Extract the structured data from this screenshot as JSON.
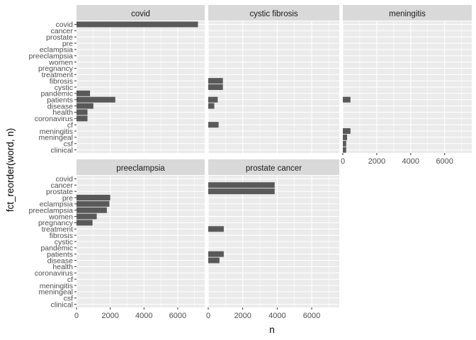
{
  "chart_data": {
    "type": "bar",
    "orientation": "horizontal",
    "facet_layout": "3-column wrap",
    "xlabel": "n",
    "ylabel": "fct_reorder(word, n)",
    "xlim": [
      0,
      7600
    ],
    "x_ticks": [
      0,
      2000,
      4000,
      6000
    ],
    "x_tick_labels": [
      "0",
      "2000",
      "4000",
      "6000"
    ],
    "grid": true,
    "colors": {
      "bar": "#595959",
      "panel": "#ebebeb",
      "strip": "#d9d9d9",
      "grid": "#ffffff"
    },
    "categories": [
      "covid",
      "cancer",
      "prostate",
      "pre",
      "eclampsia",
      "preeclampsia",
      "women",
      "pregnancy",
      "treatment",
      "fibrosis",
      "cystic",
      "pandemic",
      "patients",
      "disease",
      "health",
      "coronavirus",
      "cf",
      "meningitis",
      "meningeal",
      "csf",
      "clinical"
    ],
    "series": [
      {
        "name": "covid",
        "values": [
          7200,
          0,
          0,
          0,
          0,
          0,
          0,
          0,
          0,
          0,
          0,
          800,
          2300,
          1000,
          650,
          650,
          0,
          0,
          0,
          0,
          0
        ]
      },
      {
        "name": "cystic fibrosis",
        "values": [
          0,
          0,
          0,
          0,
          0,
          0,
          0,
          0,
          0,
          850,
          850,
          0,
          550,
          350,
          0,
          0,
          600,
          0,
          0,
          0,
          0
        ]
      },
      {
        "name": "meningitis",
        "values": [
          0,
          0,
          0,
          0,
          0,
          0,
          0,
          0,
          0,
          0,
          0,
          0,
          450,
          0,
          0,
          0,
          0,
          450,
          250,
          200,
          200
        ]
      },
      {
        "name": "preeclampsia",
        "values": [
          0,
          0,
          0,
          2000,
          1950,
          1800,
          1200,
          950,
          0,
          0,
          0,
          0,
          0,
          0,
          0,
          0,
          0,
          0,
          0,
          0,
          0
        ]
      },
      {
        "name": "prostate cancer",
        "values": [
          0,
          3850,
          3850,
          0,
          0,
          0,
          0,
          0,
          900,
          0,
          0,
          0,
          900,
          650,
          0,
          0,
          0,
          0,
          0,
          0,
          0
        ]
      }
    ]
  }
}
